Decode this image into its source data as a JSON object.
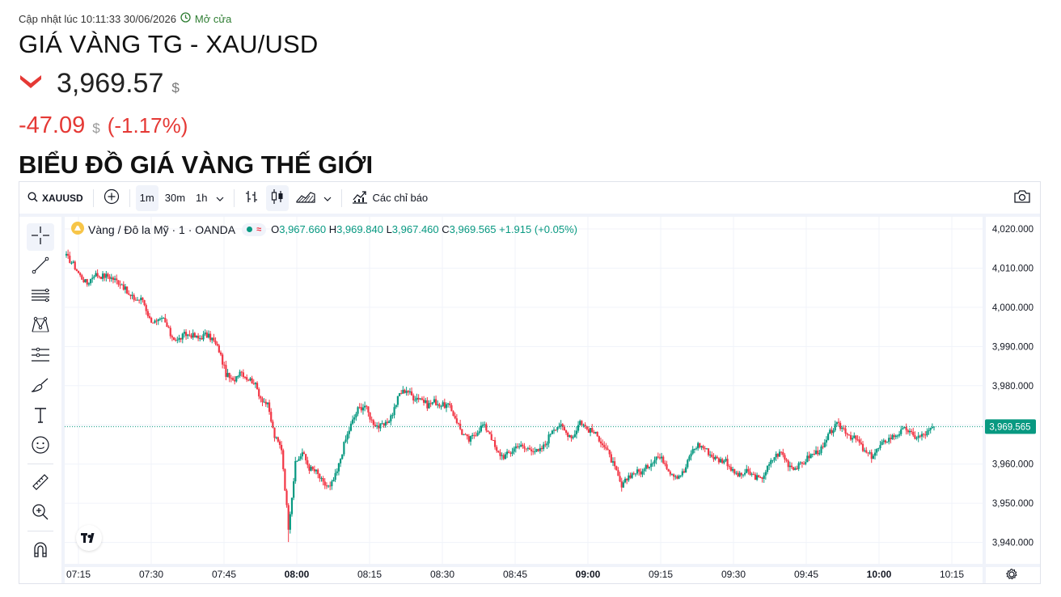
{
  "header": {
    "updated_label": "Cập nhật lúc 10:11:33 30/06/2026",
    "market_status": "Mở cửa",
    "title": "GIÁ VÀNG TG - XAU/USD",
    "price": "3,969.57",
    "price_unit": "$",
    "change": "-47.09",
    "change_unit": "$",
    "change_pct": "(-1.17%)",
    "section_title": "BIỂU ĐỒ GIÁ VÀNG THẾ GIỚI",
    "colors": {
      "down": "#e53935",
      "open": "#2e7d32"
    }
  },
  "toolbar": {
    "symbol": "XAUUSD",
    "intervals": [
      "1m",
      "30m",
      "1h"
    ],
    "active_interval": "1m",
    "indicators_label": "Các chỉ báo",
    "icons": [
      "search-icon",
      "add-symbol-icon",
      "chevron-down-icon",
      "bar-style-icon",
      "candle-style-icon",
      "area-style-icon",
      "indicators-icon",
      "camera-icon"
    ]
  },
  "left_tools": [
    "crosshair-icon",
    "trend-line-icon",
    "fib-icon",
    "pattern-icon",
    "projection-icon",
    "brush-icon",
    "text-icon",
    "emoji-icon",
    "ruler-icon",
    "zoom-icon",
    "magnet-icon"
  ],
  "legend": {
    "symbol_name": "Vàng / Đô la Mỹ · 1 · OANDA",
    "o_key": "O",
    "o_val": "3,967.660",
    "h_key": "H",
    "h_val": "3,969.840",
    "l_key": "L",
    "l_val": "3,967.460",
    "c_key": "C",
    "c_val": "3,969.565",
    "change": "+1.915 (+0.05%)"
  },
  "chart_data": {
    "type": "candlestick",
    "symbol": "XAUUSD",
    "interval": "1m",
    "y_ticks": [
      "4,020.000",
      "4,010.000",
      "4,000.000",
      "3,990.000",
      "3,980.000",
      "3,970.000",
      "3,960.000",
      "3,950.000",
      "3,940.000"
    ],
    "ylim": [
      3937,
      4022
    ],
    "x_ticks": [
      "07:15",
      "07:30",
      "07:45",
      "08:00",
      "08:15",
      "08:30",
      "08:45",
      "09:00",
      "09:15",
      "09:30",
      "09:45",
      "10:00",
      "10:15"
    ],
    "x_ticks_bold": [
      "08:00",
      "09:00",
      "10:00"
    ],
    "last_price_label": "3,969.565",
    "last_price": 3969.565,
    "colors": {
      "up": "#089981",
      "down": "#f23645",
      "grid": "#f0f3fa",
      "last": "#089981"
    },
    "close_path": [
      [
        0,
        4013
      ],
      [
        4,
        4011
      ],
      [
        8,
        4008
      ],
      [
        12,
        4006
      ],
      [
        16,
        4008.5
      ],
      [
        20,
        4008
      ],
      [
        24,
        4008
      ],
      [
        28,
        4007
      ],
      [
        32,
        4006
      ],
      [
        36,
        4003
      ],
      [
        40,
        4002
      ],
      [
        44,
        4002
      ],
      [
        48,
        3997
      ],
      [
        52,
        3996
      ],
      [
        56,
        3997
      ],
      [
        60,
        3993
      ],
      [
        64,
        3991.5
      ],
      [
        68,
        3993
      ],
      [
        72,
        3993
      ],
      [
        76,
        3992
      ],
      [
        80,
        3993
      ],
      [
        84,
        3992
      ],
      [
        88,
        3989
      ],
      [
        92,
        3983
      ],
      [
        96,
        3981
      ],
      [
        100,
        3984
      ],
      [
        104,
        3982
      ],
      [
        108,
        3981
      ],
      [
        112,
        3977
      ],
      [
        116,
        3975
      ],
      [
        120,
        3967
      ],
      [
        124,
        3964
      ],
      [
        128,
        3944
      ],
      [
        132,
        3960
      ],
      [
        136,
        3963
      ],
      [
        140,
        3959
      ],
      [
        144,
        3958
      ],
      [
        148,
        3955
      ],
      [
        152,
        3954
      ],
      [
        156,
        3958
      ],
      [
        160,
        3965
      ],
      [
        164,
        3970
      ],
      [
        168,
        3974
      ],
      [
        172,
        3975
      ],
      [
        176,
        3971
      ],
      [
        180,
        3969.5
      ],
      [
        184,
        3970
      ],
      [
        188,
        3973
      ],
      [
        192,
        3978
      ],
      [
        196,
        3979
      ],
      [
        200,
        3977
      ],
      [
        204,
        3977
      ],
      [
        208,
        3975
      ],
      [
        212,
        3976
      ],
      [
        216,
        3975
      ],
      [
        220,
        3975
      ],
      [
        224,
        3972
      ],
      [
        228,
        3968
      ],
      [
        232,
        3966
      ],
      [
        236,
        3968
      ],
      [
        240,
        3970
      ],
      [
        244,
        3968
      ],
      [
        248,
        3963
      ],
      [
        252,
        3962
      ],
      [
        256,
        3963
      ],
      [
        260,
        3965
      ],
      [
        264,
        3964
      ],
      [
        268,
        3964
      ],
      [
        272,
        3963
      ],
      [
        276,
        3965
      ],
      [
        280,
        3969
      ],
      [
        284,
        3970
      ],
      [
        288,
        3968
      ],
      [
        292,
        3967
      ],
      [
        296,
        3971
      ],
      [
        300,
        3969
      ],
      [
        304,
        3968
      ],
      [
        308,
        3966
      ],
      [
        312,
        3963
      ],
      [
        316,
        3959
      ],
      [
        320,
        3954
      ],
      [
        324,
        3957
      ],
      [
        328,
        3958
      ],
      [
        332,
        3958
      ],
      [
        336,
        3960
      ],
      [
        340,
        3962
      ],
      [
        344,
        3961
      ],
      [
        348,
        3958
      ],
      [
        352,
        3957
      ],
      [
        356,
        3958
      ],
      [
        360,
        3963
      ],
      [
        364,
        3965
      ],
      [
        368,
        3964
      ],
      [
        372,
        3962
      ],
      [
        376,
        3961
      ],
      [
        380,
        3961
      ],
      [
        384,
        3958
      ],
      [
        388,
        3957
      ],
      [
        392,
        3958
      ],
      [
        396,
        3957
      ],
      [
        400,
        3956
      ],
      [
        404,
        3959
      ],
      [
        408,
        3962
      ],
      [
        412,
        3963
      ],
      [
        416,
        3960
      ],
      [
        420,
        3959
      ],
      [
        424,
        3960
      ],
      [
        428,
        3962
      ],
      [
        432,
        3963
      ],
      [
        436,
        3964
      ],
      [
        440,
        3968
      ],
      [
        444,
        3970
      ],
      [
        448,
        3969
      ],
      [
        452,
        3967
      ],
      [
        456,
        3966
      ],
      [
        460,
        3963
      ],
      [
        464,
        3962
      ],
      [
        468,
        3964
      ],
      [
        472,
        3966
      ],
      [
        476,
        3967
      ],
      [
        480,
        3968
      ],
      [
        484,
        3969
      ],
      [
        488,
        3967
      ],
      [
        492,
        3967
      ],
      [
        496,
        3968
      ],
      [
        500,
        3969.565
      ]
    ]
  }
}
